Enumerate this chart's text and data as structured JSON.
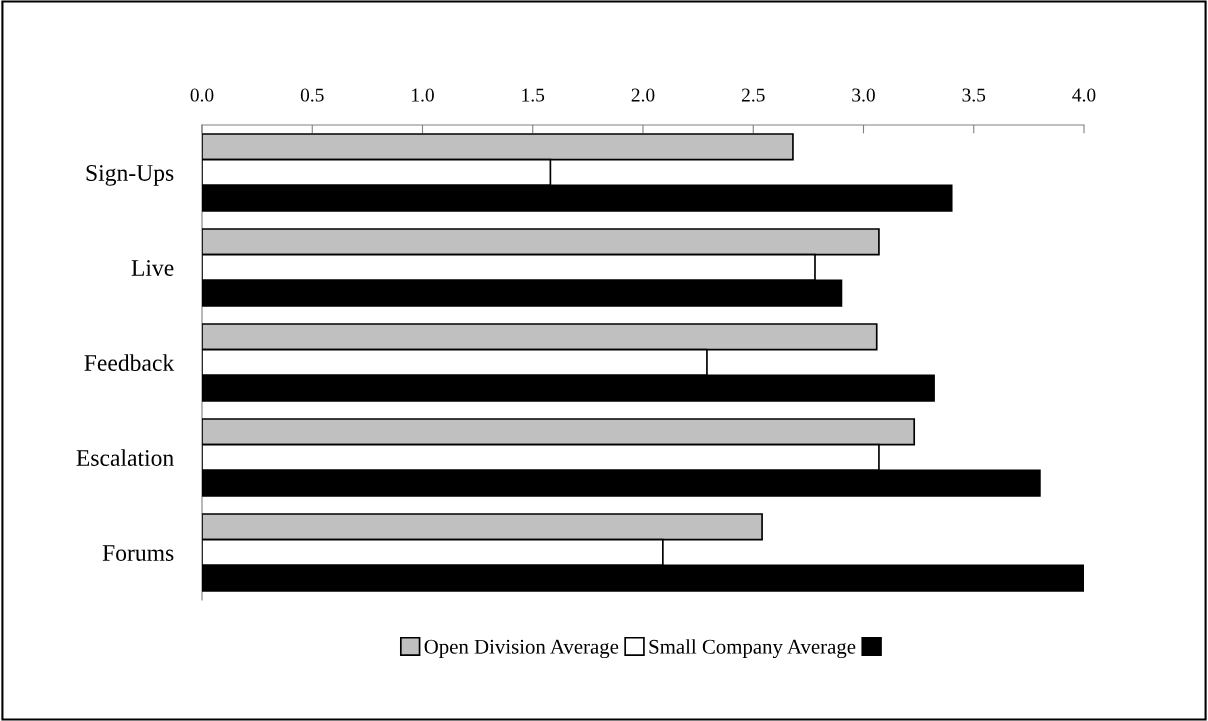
{
  "chart_data": {
    "type": "bar",
    "orientation": "horizontal",
    "categories": [
      "Sign-Ups",
      "Live",
      "Feedback",
      "Escalation",
      "Forums"
    ],
    "series": [
      {
        "name": "Open Division Average",
        "color": "#c0c0c0",
        "values": [
          2.68,
          3.07,
          3.06,
          3.23,
          2.54
        ]
      },
      {
        "name": "Small Company Average",
        "color": "#ffffff",
        "values": [
          1.58,
          2.78,
          2.29,
          3.07,
          2.09
        ]
      },
      {
        "color": "#000000",
        "values": [
          3.4,
          2.9,
          3.32,
          3.8,
          4.0
        ]
      }
    ],
    "xlim": [
      0,
      4
    ],
    "xticks": [
      {
        "value": 0,
        "label": "0.0"
      },
      {
        "value": 0.5,
        "label": "0.5"
      },
      {
        "value": 1,
        "label": "1.0"
      },
      {
        "value": 1.5,
        "label": "1.5"
      },
      {
        "value": 2,
        "label": "2.0"
      },
      {
        "value": 2.5,
        "label": "2.5"
      },
      {
        "value": 3,
        "label": "3.0"
      },
      {
        "value": 3.5,
        "label": "3.5"
      },
      {
        "value": 4,
        "label": "4.0"
      }
    ],
    "grid": false,
    "legend": "bottom"
  }
}
